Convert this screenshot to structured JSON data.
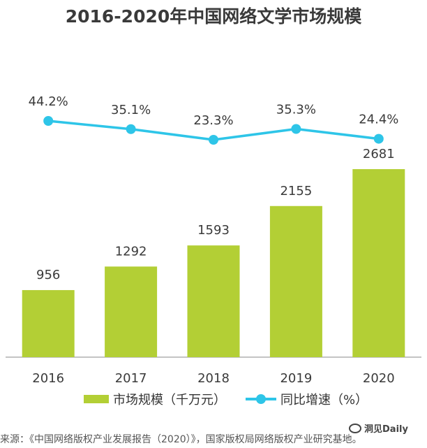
{
  "title": "2016-2020年中国网络文学市场规模",
  "chart_data": {
    "type": "bar",
    "categories": [
      "2016",
      "2017",
      "2018",
      "2019",
      "2020"
    ],
    "series": [
      {
        "name": "市场规模（千万元）",
        "kind": "bar",
        "values": [
          956,
          1292,
          1593,
          2155,
          2681
        ],
        "labels": [
          "956",
          "1292",
          "1593",
          "2155",
          "2681"
        ]
      },
      {
        "name": "同比增速（%）",
        "kind": "line",
        "values": [
          44.2,
          35.1,
          23.3,
          35.3,
          24.4
        ],
        "labels": [
          "44.2%",
          "35.1%",
          "23.3%",
          "35.3%",
          "24.4%"
        ]
      }
    ],
    "ylim": [
      0,
      2681
    ],
    "grid": false,
    "legend_position": "bottom"
  },
  "legend": {
    "bar_label": "市场规模（千万元）",
    "line_label": "同比增速（%）"
  },
  "source": "来源：《中国网络版权产业发展报告（2020）》，国家版权局网络版权产业研究基地。",
  "watermark": "洞见Daily",
  "colors": {
    "bar": "#b3cf35",
    "line": "#2ec5e8",
    "text": "#3a3a3a"
  }
}
